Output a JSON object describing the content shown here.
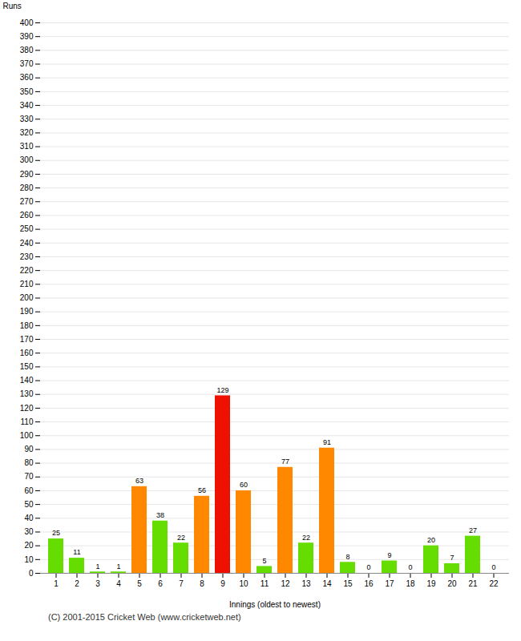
{
  "chart_data": {
    "type": "bar",
    "xlabel": "Innings (oldest to newest)",
    "ylabel": "Runs",
    "categories": [
      1,
      2,
      3,
      4,
      5,
      6,
      7,
      8,
      9,
      10,
      11,
      12,
      13,
      14,
      15,
      16,
      17,
      18,
      19,
      20,
      21,
      22
    ],
    "values": [
      25,
      11,
      1,
      1,
      63,
      38,
      22,
      56,
      129,
      60,
      5,
      77,
      22,
      91,
      8,
      0,
      9,
      0,
      20,
      7,
      27,
      0
    ],
    "colors": [
      "#66dd00",
      "#66dd00",
      "#66dd00",
      "#66dd00",
      "#ff8800",
      "#66dd00",
      "#66dd00",
      "#ff8800",
      "#ee1100",
      "#ff8800",
      "#66dd00",
      "#ff8800",
      "#66dd00",
      "#ff8800",
      "#66dd00",
      "#ff8800",
      "#66dd00",
      "#ff8800",
      "#66dd00",
      "#66dd00",
      "#66dd00",
      "#ff8800"
    ],
    "ylim": [
      0,
      400
    ],
    "yticks": [
      0,
      10,
      20,
      30,
      40,
      50,
      60,
      70,
      80,
      90,
      100,
      110,
      120,
      130,
      140,
      150,
      160,
      170,
      180,
      190,
      200,
      210,
      220,
      230,
      240,
      250,
      260,
      270,
      280,
      290,
      300,
      310,
      320,
      330,
      340,
      350,
      360,
      370,
      380,
      390,
      400
    ],
    "grid": true,
    "data_labels": true,
    "annotations": [
      "(C) 2001-2015 Cricket Web (www.cricketweb.net)"
    ]
  }
}
